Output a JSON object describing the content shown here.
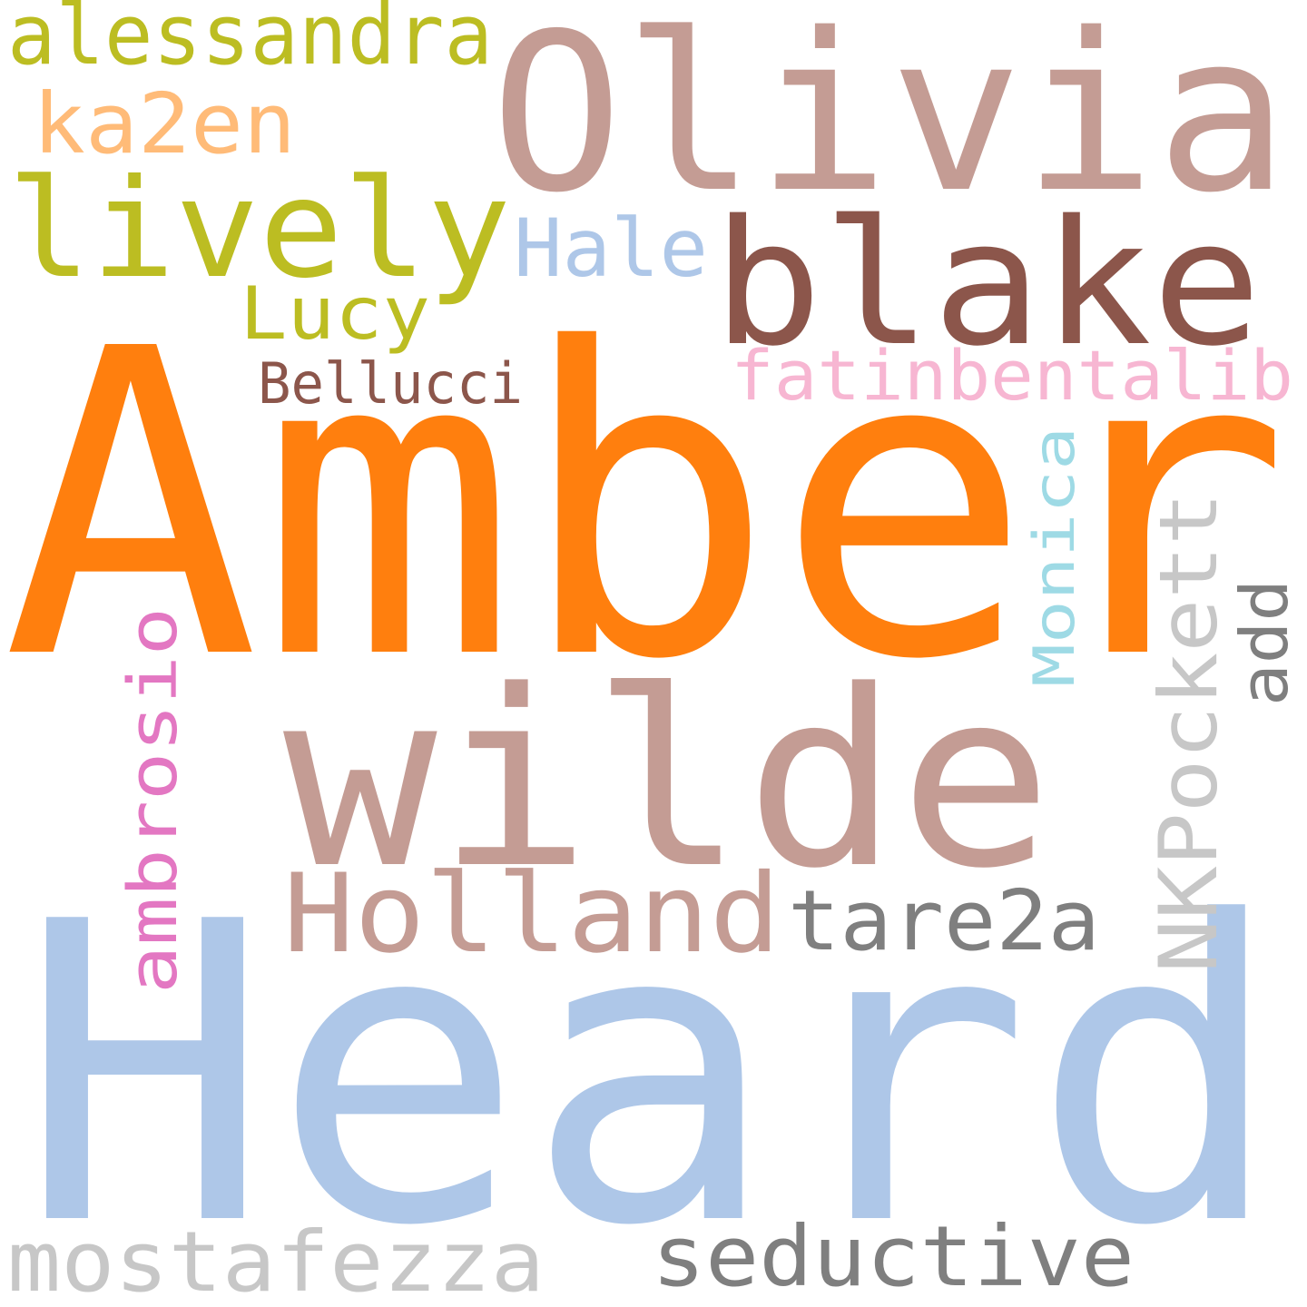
{
  "words": [
    {
      "text": "Amber",
      "color": "#ff7f0e"
    },
    {
      "text": "Heard",
      "color": "#aec7e8"
    },
    {
      "text": "Olivia",
      "color": "#c49c94"
    },
    {
      "text": "wilde",
      "color": "#c49c94"
    },
    {
      "text": "blake",
      "color": "#8c564b"
    },
    {
      "text": "lively",
      "color": "#bcbd22"
    },
    {
      "text": "alessandra",
      "color": "#bcbd22"
    },
    {
      "text": "ka2en",
      "color": "#ffbb78"
    },
    {
      "text": "Hale",
      "color": "#aec7e8"
    },
    {
      "text": "Lucy",
      "color": "#bcbd22"
    },
    {
      "text": "Bellucci",
      "color": "#8c564b"
    },
    {
      "text": "fatinbentalib",
      "color": "#f7b6d2"
    },
    {
      "text": "Monica",
      "color": "#9edae5"
    },
    {
      "text": "NKPockett",
      "color": "#c7c7c7"
    },
    {
      "text": "add",
      "color": "#7f7f7f"
    },
    {
      "text": "ambrosio",
      "color": "#e377c2"
    },
    {
      "text": "Holland",
      "color": "#c49c94"
    },
    {
      "text": "tare2a",
      "color": "#7f7f7f"
    },
    {
      "text": "mostafezza",
      "color": "#c7c7c7"
    },
    {
      "text": "seductive",
      "color": "#7f7f7f"
    }
  ]
}
